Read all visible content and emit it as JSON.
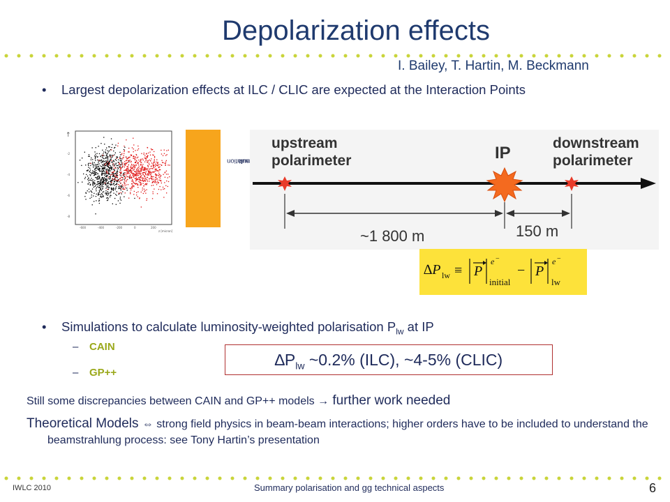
{
  "slide": {
    "title": "Depolarization effects",
    "authors": "I. Bailey, T. Hartin, M. Beckmann",
    "bullet1": "Largest depolarization effects at ILC / CLIC are expected at the Interaction Points",
    "bullet_symbol": "•",
    "bullet2_pre": "Simulations to calculate luminosity-weighted polarisation P",
    "bullet2_sub": "lw",
    "bullet2_post": " at IP",
    "subitems": [
      "CAIN",
      "GP++"
    ],
    "sub_dash": "–",
    "result_delta": "∆P",
    "result_sub": "lw",
    "result_text": " ~0.2% (ILC), ~4-5% (CLIC)",
    "discrepancy_text": "Still some discrepancies between CAIN and GP++ models ",
    "arrow_symbol": "→",
    "discrepancy_emph": " further work needed",
    "theory_lead": "Theoretical Models ",
    "theory_symbol": "⇔",
    "theory_text": " strong field physics in beam-beam interactions; higher orders have to be included to understand the beamstrahlung process: see  Tony Hartin’s presentation",
    "sim_label_line1": "GP++ Simulation",
    "sim_label_line2": "Rimbault",
    "footer_left": "IWLC 2010",
    "footer_center": "Summary polarisation and gg technical aspects",
    "page_number": "6"
  },
  "diagram": {
    "upstream_label_1": "upstream",
    "upstream_label_2": "polarimeter",
    "ip_label": "IP",
    "downstream_label_1": "downstream",
    "downstream_label_2": "polarimeter",
    "distance_1": "~1 800 m",
    "distance_2": "150 m"
  },
  "colors": {
    "title": "#1f3a6e",
    "accent_dots": "#c9d43a",
    "sub_items": "#9aa81a",
    "box_border": "#b03030",
    "label_bg": "#f7a51c",
    "equation_bg": "#fde23a"
  }
}
